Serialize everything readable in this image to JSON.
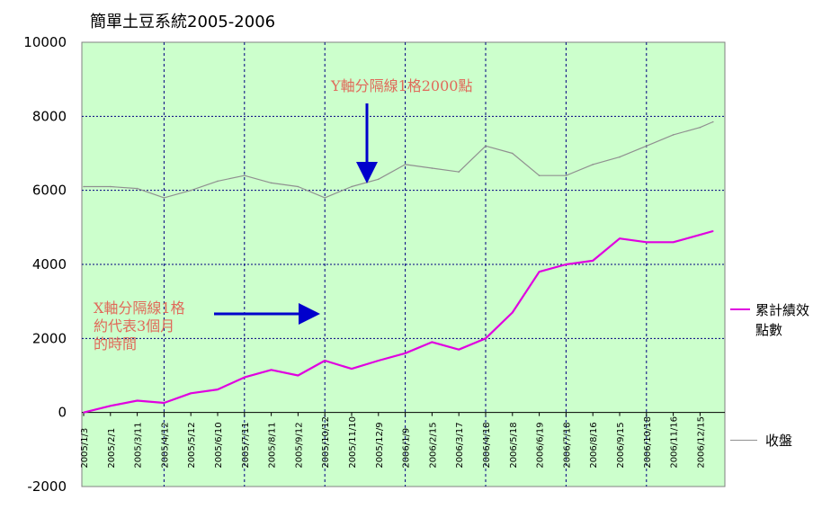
{
  "chart_data": {
    "type": "line",
    "title": "簡單土豆系統2005-2006",
    "xlabel": "",
    "ylabel": "",
    "ylim": [
      -2000,
      10000
    ],
    "ytick_labels": [
      "10000",
      "8000",
      "6000",
      "4000",
      "2000",
      "0",
      "-2000"
    ],
    "xtick_labels": [
      "2005/1/3",
      "2005/2/1",
      "2005/3/11",
      "2005/4/12",
      "2005/5/12",
      "2005/6/10",
      "2005/7/11",
      "2005/8/11",
      "2005/9/12",
      "2005/10/12",
      "2005/11/10",
      "2005/12/9",
      "2006/1/9",
      "2006/2/15",
      "2006/3/17",
      "2006/4/18",
      "2006/5/18",
      "2006/6/19",
      "2006/7/18",
      "2006/8/16",
      "2006/9/15",
      "2006/10/18",
      "2006/11/16",
      "2006/12/15"
    ],
    "grid": true,
    "legend_position": "right",
    "series": [
      {
        "name": "累計績效點數",
        "color": "#e000e0",
        "x": [
          "2005/1/3",
          "2005/2/1",
          "2005/3/11",
          "2005/4/12",
          "2005/5/12",
          "2005/6/10",
          "2005/7/11",
          "2005/8/11",
          "2005/9/12",
          "2005/10/12",
          "2005/11/10",
          "2005/12/9",
          "2006/1/9",
          "2006/2/15",
          "2006/3/17",
          "2006/4/18",
          "2006/5/18",
          "2006/6/19",
          "2006/7/18",
          "2006/8/16",
          "2006/9/15",
          "2006/10/18",
          "2006/11/16",
          "2006/12/15",
          "2006/12/29"
        ],
        "values": [
          0,
          180,
          320,
          260,
          520,
          620,
          950,
          1150,
          1000,
          1400,
          1180,
          1400,
          1600,
          1900,
          1700,
          2000,
          2700,
          3800,
          4000,
          4100,
          4700,
          4600,
          4600,
          4800,
          4900
        ]
      },
      {
        "name": "收盤",
        "color": "#909090",
        "x": [
          "2005/1/3",
          "2005/2/1",
          "2005/3/11",
          "2005/4/12",
          "2005/5/12",
          "2005/6/10",
          "2005/7/11",
          "2005/8/11",
          "2005/9/12",
          "2005/10/12",
          "2005/11/10",
          "2005/12/9",
          "2006/1/9",
          "2006/2/15",
          "2006/3/17",
          "2006/4/18",
          "2006/5/18",
          "2006/6/19",
          "2006/7/18",
          "2006/8/16",
          "2006/9/15",
          "2006/10/18",
          "2006/11/16",
          "2006/12/15",
          "2006/12/29"
        ],
        "values": [
          6100,
          6100,
          6050,
          5800,
          6000,
          6250,
          6400,
          6200,
          6100,
          5800,
          6100,
          6300,
          6700,
          6600,
          6500,
          7200,
          7000,
          6400,
          6400,
          6700,
          6900,
          7200,
          7500,
          7700,
          7850
        ]
      }
    ]
  },
  "legend": {
    "perf_label": "累計績效點數",
    "close_label": "收盤"
  },
  "annotations": {
    "y_note": "Y軸分隔線1格2000點",
    "x_note_line1": "X軸分隔線1格",
    "x_note_line2": "約代表3個月",
    "x_note_line3": "的時間"
  },
  "colors": {
    "plot_background": "#ccffcc",
    "arrow": "#0000cc",
    "annotation_text": "#e06a5a"
  }
}
